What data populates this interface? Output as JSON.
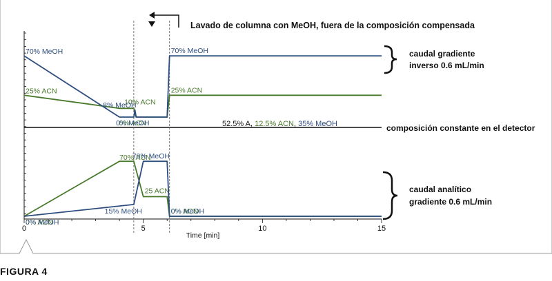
{
  "figure_label": "FIGURA 4",
  "colors": {
    "acn": "#4a7a2c",
    "meoh": "#2e4d7f",
    "axis": "#111111",
    "frame": "#9a9a9a"
  },
  "annotation_top": "Lavado de columna con MeOH, fuera de la composición compensada",
  "labels": {
    "upper": [
      "caudal gradiente",
      "inverso 0.6 mL/min"
    ],
    "middle": "composición constante en el detector",
    "lower": [
      "caudal analítico",
      "gradiente 0.6 mL/min"
    ]
  },
  "detector_composition": {
    "a": "52.5% A, ",
    "acn": "12.5% ACN",
    "sep": ", ",
    "meoh": "35% MeOH"
  },
  "chart_data": {
    "type": "line",
    "xlabel": "Time [min]",
    "xlim": [
      0,
      15
    ],
    "xticks": [
      0,
      5,
      10,
      15
    ],
    "markers": [
      4.6,
      6.1
    ],
    "panels": [
      {
        "name": "upper",
        "ylim": [
          0,
          100
        ],
        "series": [
          {
            "color_key": "acn",
            "x": [
              0,
              4,
              4.6,
              4.7,
              6,
              6.1,
              15
            ],
            "y": [
              25,
              10,
              10,
              0,
              0,
              25,
              25
            ],
            "labels": [
              {
                "text": "25% ACN",
                "i": 0
              },
              {
                "text": "10% ACN",
                "i": 1
              },
              {
                "text": "0% ACN",
                "i": 3
              },
              {
                "text": "25% ACN",
                "i": 5
              }
            ]
          },
          {
            "color_key": "meoh",
            "x": [
              0,
              4,
              4.6,
              4.65,
              4.7,
              6,
              6.1,
              15
            ],
            "y": [
              70,
              0,
              0,
              8,
              0,
              0,
              70,
              70
            ],
            "labels": [
              {
                "text": "70% MeOH",
                "i": 0
              },
              {
                "text": "8% MeOH",
                "i": 3
              },
              {
                "text": "0% MeOH",
                "i": 4
              },
              {
                "text": "70% MeOH",
                "i": 6
              }
            ]
          }
        ]
      },
      {
        "name": "lower",
        "ylim": [
          0,
          100
        ],
        "series": [
          {
            "color_key": "acn",
            "x": [
              0,
              4,
              4.6,
              5,
              6,
              6.1,
              15
            ],
            "y": [
              0,
              70,
              70,
              25,
              25,
              0,
              0
            ],
            "labels": [
              {
                "text": "0% ACN",
                "i": 0
              },
              {
                "text": "70% ACN",
                "i": 1
              },
              {
                "text": "25 ACN",
                "i": 3
              },
              {
                "text": "0% ACN",
                "i": 5
              }
            ]
          },
          {
            "color_key": "meoh",
            "x": [
              0,
              4.6,
              5,
              6,
              6.1,
              15
            ],
            "y": [
              0,
              15,
              70,
              70,
              0,
              0
            ],
            "labels": [
              {
                "text": "0% MeOH",
                "i": 0
              },
              {
                "text": "15% MeOH",
                "i": 1
              },
              {
                "text": "70% MeOH",
                "i": 2
              },
              {
                "text": "0% MeOH",
                "i": 4
              }
            ]
          }
        ]
      }
    ]
  }
}
